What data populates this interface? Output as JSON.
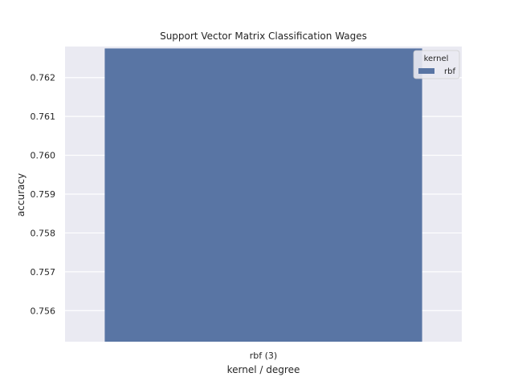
{
  "chart_data": {
    "type": "bar",
    "title": "Support Vector Matrix Classification Wages",
    "xlabel": "kernel / degree",
    "ylabel": "accuracy",
    "categories": [
      "rbf (3)"
    ],
    "series": [
      {
        "name": "rbf",
        "values": [
          0.76275
        ]
      }
    ],
    "ylim": [
      0.7552,
      0.7628
    ],
    "yticks": [
      0.756,
      0.757,
      0.758,
      0.759,
      0.76,
      0.761,
      0.762
    ],
    "ytick_labels": [
      "0.756",
      "0.757",
      "0.758",
      "0.759",
      "0.760",
      "0.761",
      "0.762"
    ],
    "grid": true,
    "legend": {
      "title": "kernel",
      "position": "top-right"
    },
    "colors": {
      "background": "#eaeaf2",
      "grid": "#ffffff",
      "bar": "#5975a4"
    }
  }
}
